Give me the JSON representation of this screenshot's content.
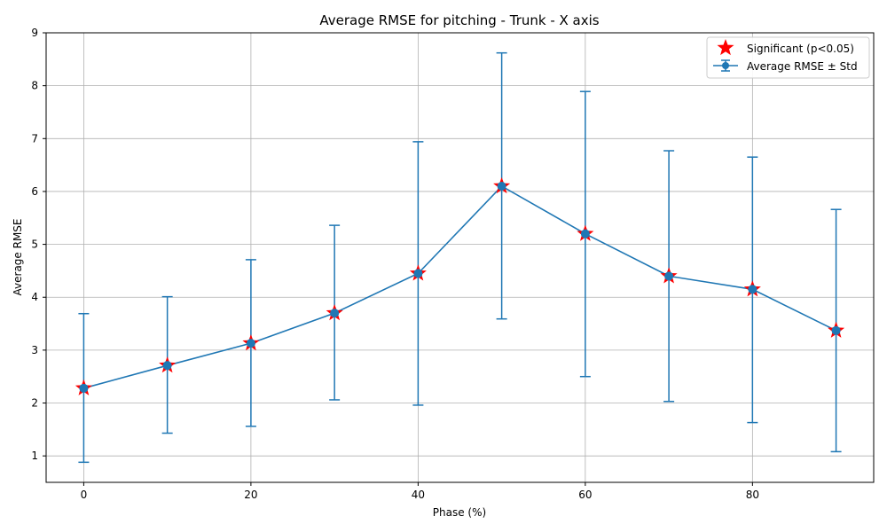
{
  "chart_data": {
    "type": "line",
    "title": "Average RMSE for pitching - Trunk - X axis",
    "xlabel": "Phase (%)",
    "ylabel": "Average RMSE",
    "x": [
      0,
      10,
      20,
      30,
      40,
      50,
      60,
      70,
      80,
      90
    ],
    "series": [
      {
        "name": "Average RMSE ± Std",
        "values": [
          2.28,
          2.71,
          3.13,
          3.7,
          4.45,
          6.1,
          5.2,
          4.4,
          4.15,
          3.37
        ],
        "error_lower": [
          0.88,
          1.43,
          1.56,
          2.06,
          1.96,
          3.59,
          2.5,
          2.03,
          1.63,
          1.08
        ],
        "error_upper": [
          3.69,
          4.01,
          4.71,
          5.36,
          6.94,
          8.62,
          7.89,
          6.77,
          6.65,
          5.66
        ],
        "color": "#1f77b4"
      },
      {
        "name": "Significant (p<0.05)",
        "marker": "star",
        "color": "#ff0000",
        "x": [
          0,
          10,
          20,
          30,
          40,
          50,
          60,
          70,
          80,
          90
        ],
        "values": [
          2.28,
          2.71,
          3.13,
          3.7,
          4.45,
          6.1,
          5.2,
          4.4,
          4.15,
          3.37
        ]
      }
    ],
    "x_ticks": [
      "0",
      "20",
      "40",
      "60",
      "80"
    ],
    "y_ticks": [
      "1",
      "2",
      "3",
      "4",
      "5",
      "6",
      "7",
      "8",
      "9"
    ],
    "xlim": [
      -4.5,
      94.5
    ],
    "ylim": [
      0.5,
      9
    ],
    "grid": true,
    "legend_position": "top-right"
  }
}
